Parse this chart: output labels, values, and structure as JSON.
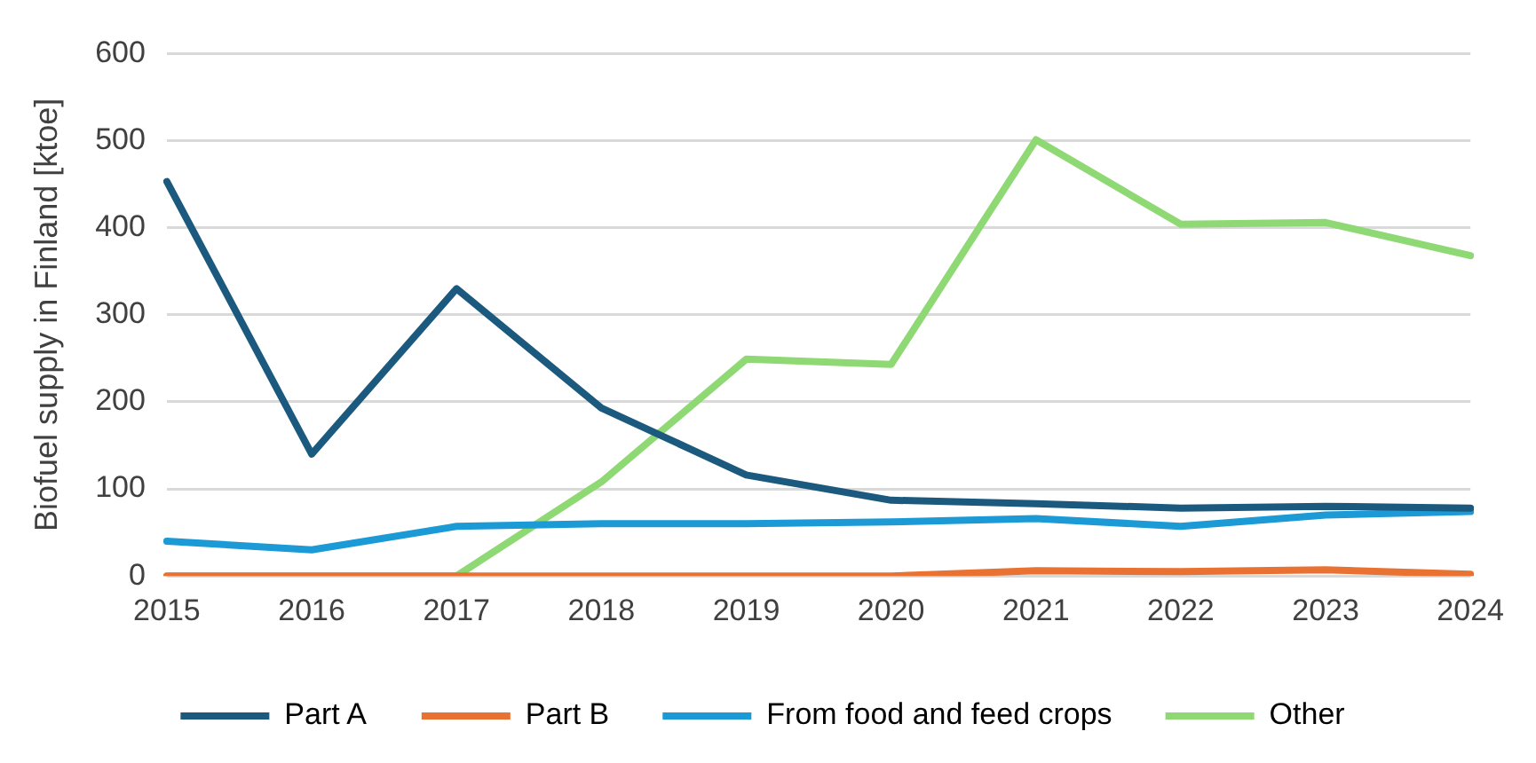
{
  "chart_data": {
    "type": "line",
    "ylabel": "Biofuel supply in Finland [ktoe]",
    "categories": [
      "2015",
      "2016",
      "2017",
      "2018",
      "2019",
      "2020",
      "2021",
      "2022",
      "2023",
      "2024"
    ],
    "series": [
      {
        "name": "Part A",
        "color": "#1b5a7e",
        "values": [
          453,
          140,
          330,
          193,
          116,
          87,
          83,
          78,
          80,
          78
        ]
      },
      {
        "name": "Part B",
        "color": "#e97132",
        "values": [
          0,
          0,
          0,
          0,
          0,
          0,
          6,
          5,
          7,
          2
        ]
      },
      {
        "name": "From food and feed crops",
        "color": "#1c9ad6",
        "values": [
          40,
          30,
          57,
          60,
          60,
          62,
          66,
          57,
          70,
          74
        ]
      },
      {
        "name": "Other",
        "color": "#8ed973",
        "values": [
          0,
          0,
          0,
          108,
          249,
          243,
          501,
          404,
          406,
          368
        ]
      }
    ],
    "ylim": [
      0,
      600
    ],
    "yticks": [
      0,
      100,
      200,
      300,
      400,
      500,
      600
    ],
    "grid": "y",
    "legend": "bottom",
    "marker": "none",
    "line_style": "solid"
  }
}
